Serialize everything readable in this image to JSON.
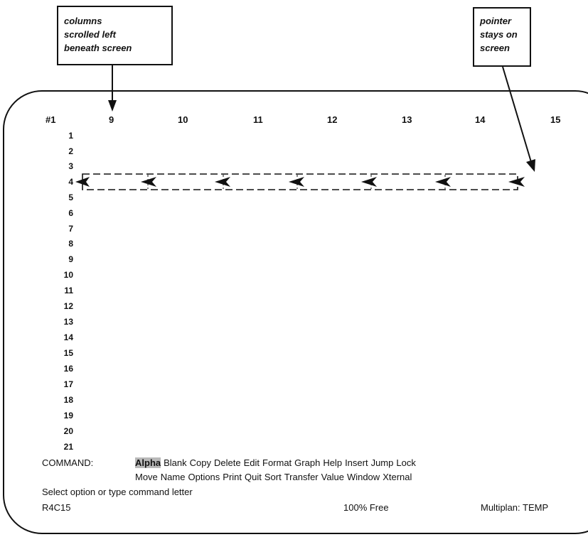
{
  "annotations": {
    "left_callout": [
      "columns",
      "scrolled left",
      "beneath screen"
    ],
    "right_callout": [
      "pointer",
      "stays on",
      "screen"
    ]
  },
  "sheet": {
    "window_label": "#1",
    "column_headers": [
      "9",
      "10",
      "11",
      "12",
      "13",
      "14",
      "15"
    ],
    "row_numbers": [
      "1",
      "2",
      "3",
      "4",
      "5",
      "6",
      "7",
      "8",
      "9",
      "10",
      "11",
      "12",
      "13",
      "14",
      "15",
      "16",
      "17",
      "18",
      "19",
      "20",
      "21"
    ]
  },
  "command": {
    "label": "COMMAND:",
    "line1": [
      "Alpha",
      "Blank",
      "Copy",
      "Delete",
      "Edit",
      "Format",
      "Graph",
      "Help",
      "Insert",
      "Jump",
      "Lock"
    ],
    "line2": [
      "Move",
      "Name",
      "Options",
      "Print",
      "Quit",
      "Sort",
      "Transfer",
      "Value",
      "Window",
      "Xternal"
    ],
    "highlighted": "Alpha"
  },
  "prompt": "Select option or type command letter",
  "status": {
    "cell": "R4C15",
    "free": "100% Free",
    "app": "Multiplan: TEMP"
  }
}
